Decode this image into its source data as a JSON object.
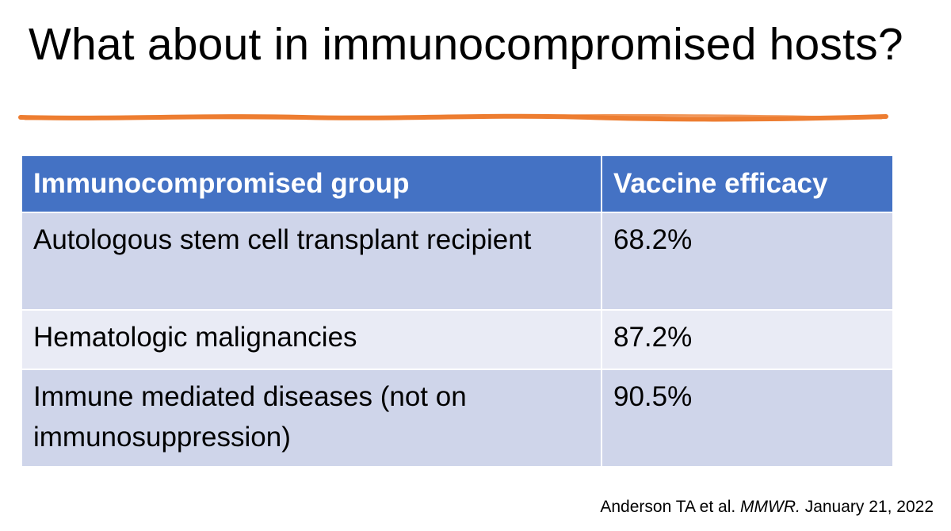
{
  "slide": {
    "title": "What about in immunocompromised hosts?",
    "accent_color": "#ed7d31"
  },
  "table": {
    "header_color": "#4472c4",
    "row_colors": [
      "#cfd5ea",
      "#e9ebf5"
    ],
    "headers": [
      "Immunocompromised group",
      "Vaccine efficacy"
    ],
    "rows": [
      [
        "Autologous stem cell transplant recipient",
        "68.2%"
      ],
      [
        "Hematologic malignancies",
        "87.2%"
      ],
      [
        "Immune mediated diseases (not on immunosuppression)",
        "90.5%"
      ]
    ]
  },
  "citation": {
    "authors": "Anderson TA et al.",
    "journal": "MMWR.",
    "date": "January 21, 2022"
  }
}
